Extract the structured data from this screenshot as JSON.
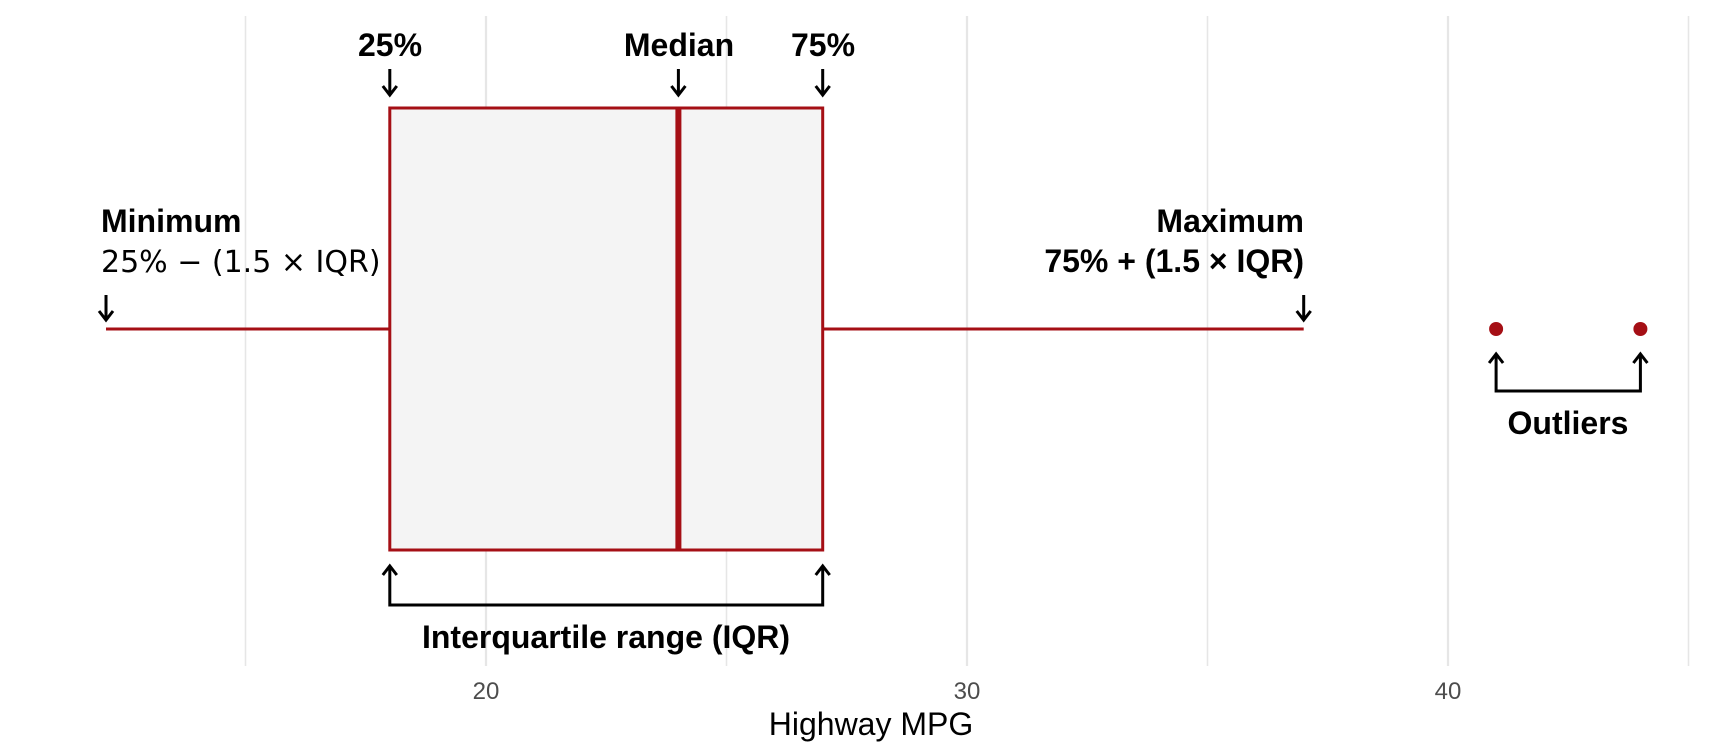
{
  "chart_data": {
    "type": "box",
    "xlabel": "Highway MPG",
    "x_ticks": [
      20,
      30,
      40
    ],
    "xlim": [
      12.1,
      45.8
    ],
    "grid": "vertical major and minor lines every 5 units",
    "box": {
      "whisker_low": 12.1,
      "q1": 18,
      "median": 24,
      "q3": 27,
      "whisker_high": 37,
      "outliers": [
        41,
        44
      ]
    },
    "annotations": {
      "q1_label": "25%",
      "median_label": "Median",
      "q3_label": "75%",
      "min_title": "Minimum",
      "min_formula": "25% − (1.5 × IQR)",
      "max_title": "Maximum",
      "max_formula": "75% + (1.5 × IQR)",
      "iqr_label": "Interquartile range (IQR)",
      "outliers_label": "Outliers"
    },
    "colors": {
      "box_stroke": "#a50f15",
      "box_fill": "#f4f4f4",
      "outlier": "#a50f15",
      "grid": "#e6e6e6"
    }
  }
}
